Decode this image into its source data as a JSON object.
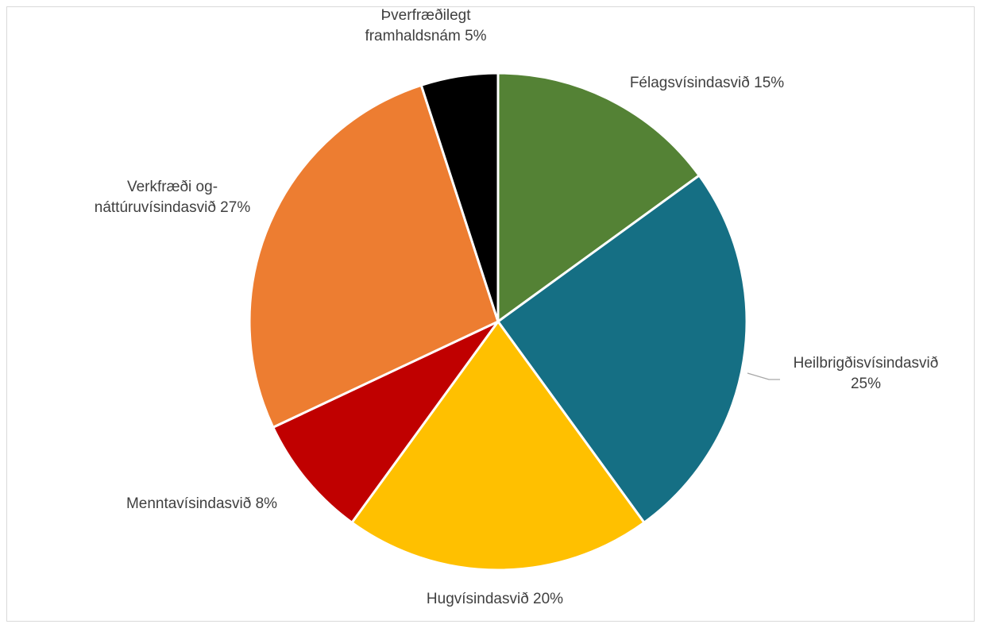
{
  "chart_data": {
    "type": "pie",
    "title": "",
    "start_angle_deg": 0,
    "direction": "clockwise",
    "slices": [
      {
        "label": "Félagsvísindasvið",
        "value": 15,
        "display": "Félagsvísindasvið 15%",
        "color": "#548235"
      },
      {
        "label": "Heilbrigðisvísindasvið",
        "value": 25,
        "display": "Heilbrigðisvísindasvið 25%",
        "color": "#156F84"
      },
      {
        "label": "Hugvísindasvið",
        "value": 20,
        "display": "Hugvísindasvið 20%",
        "color": "#FFC000"
      },
      {
        "label": "Menntavísindasvið",
        "value": 8,
        "display": "Menntavísindasvið 8%",
        "color": "#C00000"
      },
      {
        "label": "Verkfræði og-náttúruvísindasvið",
        "value": 27,
        "display": "Verkfræði og-náttúruvísindasvið 27%",
        "color": "#ED7D31"
      },
      {
        "label": "Þverfræðilegt framhaldsnám",
        "value": 5,
        "display": "Þverfræðilegt framhaldsnám 5%",
        "color": "#000000"
      }
    ],
    "label_lines": [
      [
        "Félagsvísindasvið 15%"
      ],
      [
        "Heilbrigðisvísindasvið",
        "25%"
      ],
      [
        "Hugvísindasvið 20%"
      ],
      [
        "Menntavísindasvið 8%"
      ],
      [
        "Verkfræði og-",
        "náttúruvísindasvið 27%"
      ],
      [
        "Þverfræðilegt",
        "framhaldsnám 5%"
      ]
    ],
    "leader_line_color": "#a6a6a6"
  }
}
